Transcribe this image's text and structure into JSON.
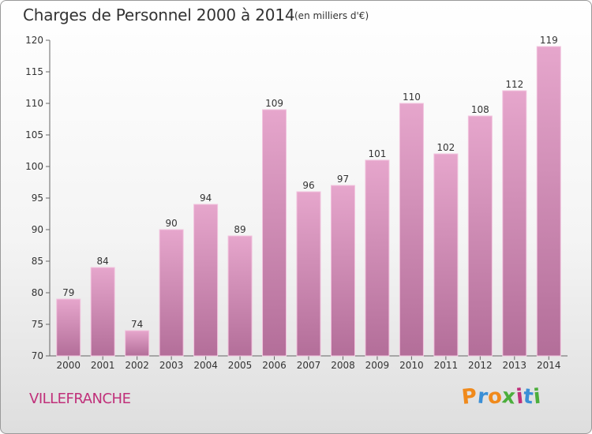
{
  "header": {
    "title": "Charges de Personnel 2000 à 2014",
    "subtitle": "(en milliers d'€)"
  },
  "footer": {
    "city": "VILLEFRANCHE",
    "logo": "Proxiti"
  },
  "colors": {
    "bar_top": "#e6a6cc",
    "bar_bottom": "#b36e99",
    "city": "#c0307a",
    "logo_letters": [
      "#f08a1c",
      "#3a8fd6",
      "#f08a1c",
      "#4cae3c",
      "#c0307a",
      "#3a8fd6",
      "#4cae3c"
    ]
  },
  "chart_data": {
    "type": "bar",
    "categories": [
      "2000",
      "2001",
      "2002",
      "2003",
      "2004",
      "2005",
      "2006",
      "2007",
      "2008",
      "2009",
      "2010",
      "2011",
      "2012",
      "2013",
      "2014"
    ],
    "values": [
      79,
      84,
      74,
      90,
      94,
      89,
      109,
      96,
      97,
      101,
      110,
      102,
      108,
      112,
      119
    ],
    "data_labels": [
      "79",
      "84",
      "74",
      "90",
      "94",
      "89",
      "109",
      "96",
      "97",
      "101",
      "110",
      "102",
      "108",
      "112",
      "119"
    ],
    "ylim": [
      70,
      120
    ],
    "yticks": [
      "70",
      "75",
      "80",
      "85",
      "90",
      "95",
      "100",
      "105",
      "110",
      "115",
      "120"
    ],
    "grid": false,
    "xlabel": "",
    "ylabel": ""
  }
}
